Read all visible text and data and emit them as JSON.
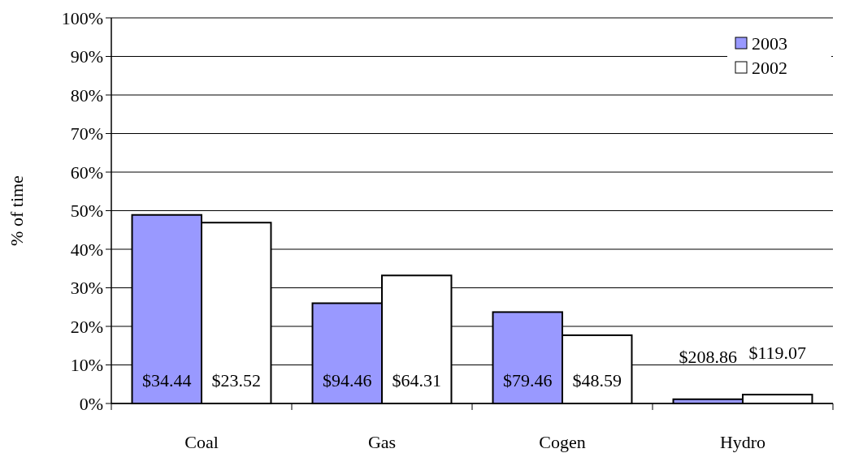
{
  "chart_data": {
    "type": "bar",
    "ylabel": "% of time",
    "categories": [
      "Coal",
      "Gas",
      "Cogen",
      "Hydro"
    ],
    "series": [
      {
        "name": "2003",
        "color": "#9999ff",
        "values": [
          48.9,
          26.0,
          23.7,
          1.1
        ]
      },
      {
        "name": "2002",
        "color": "#ffffff",
        "values": [
          46.9,
          33.2,
          17.7,
          2.3
        ]
      }
    ],
    "annotations": [
      {
        "text": "$34.44",
        "x": "Coal",
        "y": 6
      },
      {
        "text": "$23.52",
        "x": "Coal",
        "y": 6
      },
      {
        "text": "$94.46",
        "x": "Gas",
        "y": 6
      },
      {
        "text": "$64.31",
        "x": "Gas",
        "y": 6
      },
      {
        "text": "$79.46",
        "x": "Cogen",
        "y": 6
      },
      {
        "text": "$48.59",
        "x": "Cogen",
        "y": 6
      },
      {
        "text": "$208.86",
        "x": "Hydro",
        "y": 1.1
      },
      {
        "text": "$119.07",
        "x": "Hydro",
        "y": 2.3
      }
    ],
    "ylim": [
      0,
      100
    ],
    "yticks": [
      {
        "value": 0,
        "label": "0%"
      },
      {
        "value": 10,
        "label": "10%"
      },
      {
        "value": 20,
        "label": "20%"
      },
      {
        "value": 30,
        "label": "30%"
      },
      {
        "value": 40,
        "label": "40%"
      },
      {
        "value": 50,
        "label": "50%"
      },
      {
        "value": 60,
        "label": "60%"
      },
      {
        "value": 70,
        "label": "70%"
      },
      {
        "value": 80,
        "label": "80%"
      },
      {
        "value": 90,
        "label": "90%"
      },
      {
        "value": 100,
        "label": "100%"
      }
    ],
    "grid": "y",
    "legend": "top right"
  }
}
